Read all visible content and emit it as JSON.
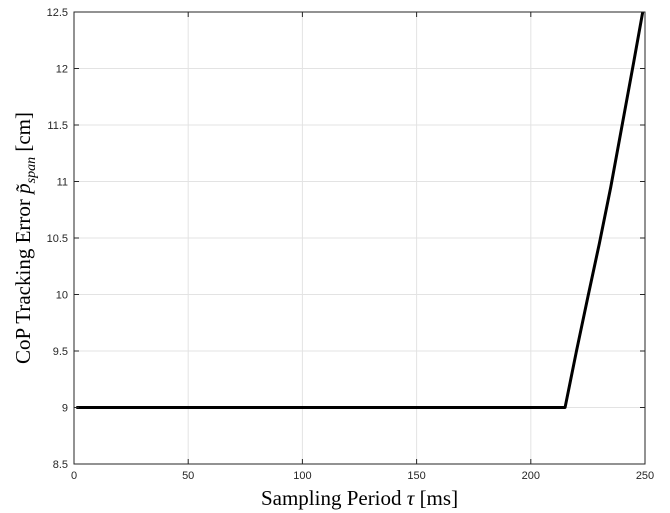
{
  "chart_data": {
    "type": "line",
    "title": "",
    "xlabel": "Sampling Period τ [ms]",
    "ylabel": "CoP Tracking Error p̃span [cm]",
    "ylabel_parts": {
      "prefix": "CoP Tracking Error ",
      "symbol": "p̃",
      "subscript": "span",
      "unit": " [cm]"
    },
    "xlabel_parts": {
      "prefix": "Sampling Period ",
      "symbol": "τ",
      "unit": " [ms]"
    },
    "xlim": [
      0,
      250
    ],
    "ylim": [
      8.5,
      12.5
    ],
    "xticks": [
      0,
      50,
      100,
      150,
      200,
      250
    ],
    "yticks": [
      8.5,
      9,
      9.5,
      10,
      10.5,
      11,
      11.5,
      12,
      12.5
    ],
    "grid": true,
    "series": [
      {
        "color": "#000000",
        "x": [
          1,
          50,
          100,
          150,
          200,
          215,
          220,
          225,
          230,
          235,
          240,
          245,
          249
        ],
        "y": [
          9,
          9,
          9,
          9,
          9,
          9,
          9.5,
          9.98,
          10.45,
          10.95,
          11.5,
          12.05,
          12.5
        ]
      }
    ]
  }
}
